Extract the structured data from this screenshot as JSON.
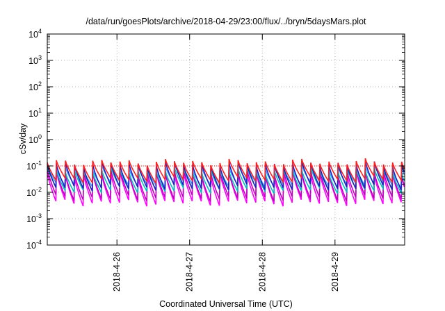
{
  "chart_data": {
    "type": "line",
    "title": "/data/run/goesPlots/archive/2018-04-29/23:00/flux/../bryn/5daysMars.plot",
    "xlabel": "Coordinated Universal Time (UTC)",
    "ylabel": "cSv/day",
    "x_range_days": [
      "2018-04-25T01:00",
      "2018-04-29T23:00"
    ],
    "x_ticks": [
      "2018-4-26",
      "2018-4-27",
      "2018-4-28",
      "2018-4-29"
    ],
    "y_scale": "log",
    "ylim": [
      0.0001,
      10000
    ],
    "y_ticks": [
      {
        "base": "10",
        "exp": "-4"
      },
      {
        "base": "10",
        "exp": "-3"
      },
      {
        "base": "10",
        "exp": "-2"
      },
      {
        "base": "10",
        "exp": "-1"
      },
      {
        "base": "10",
        "exp": "0"
      },
      {
        "base": "10",
        "exp": "1"
      },
      {
        "base": "10",
        "exp": "2"
      },
      {
        "base": "10",
        "exp": "3"
      },
      {
        "base": "10",
        "exp": "4"
      }
    ],
    "grid": true,
    "reference_line": {
      "value": 0.1,
      "color": "#ff0000",
      "style": "dotted"
    },
    "pulse_period_hours": 3,
    "series": [
      {
        "color": "#ff00ff",
        "peak": 0.05,
        "trough": 0.004
      },
      {
        "color": "#c000c0",
        "peak": 0.06,
        "trough": 0.006
      },
      {
        "color": "#00c0c0",
        "peak": 0.07,
        "trough": 0.012
      },
      {
        "color": "#40a0ff",
        "peak": 0.09,
        "trough": 0.02
      },
      {
        "color": "#2020c0",
        "peak": 0.12,
        "trough": 0.015
      },
      {
        "color": "#ff2020",
        "peak": 0.14,
        "trough": 0.03
      }
    ]
  }
}
